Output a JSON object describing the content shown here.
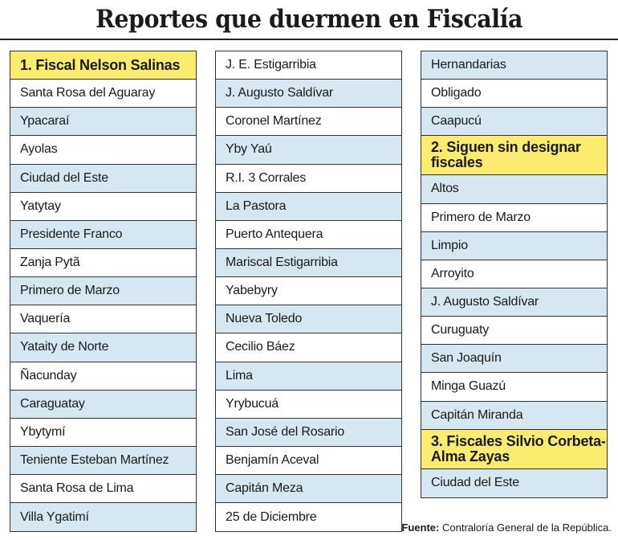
{
  "title": "Reportes que duermen en Fiscalía",
  "columns": [
    {
      "rows": [
        {
          "text": "1. Fiscal Nelson Salinas",
          "style": "yellow"
        },
        {
          "text": "Santa Rosa del Aguaray",
          "style": "white"
        },
        {
          "text": "Ypacaraí",
          "style": "blue"
        },
        {
          "text": "Ayolas",
          "style": "white"
        },
        {
          "text": "Ciudad del Este",
          "style": "blue"
        },
        {
          "text": "Yatytay",
          "style": "white"
        },
        {
          "text": "Presidente Franco",
          "style": "blue"
        },
        {
          "text": "Zanja Pytã",
          "style": "white"
        },
        {
          "text": "Primero de Marzo",
          "style": "blue"
        },
        {
          "text": "Vaquería",
          "style": "white"
        },
        {
          "text": "Yataity de Norte",
          "style": "blue"
        },
        {
          "text": "Ñacunday",
          "style": "white"
        },
        {
          "text": "Caraguatay",
          "style": "blue"
        },
        {
          "text": "Ybytymí",
          "style": "white"
        },
        {
          "text": "Teniente Esteban Martínez",
          "style": "blue"
        },
        {
          "text": "Santa Rosa de Lima",
          "style": "white"
        },
        {
          "text": "Villa Ygatimí",
          "style": "blue"
        }
      ]
    },
    {
      "rows": [
        {
          "text": "J. E. Estigarribia",
          "style": "white"
        },
        {
          "text": "J. Augusto Saldívar",
          "style": "blue"
        },
        {
          "text": "Coronel Martínez",
          "style": "white"
        },
        {
          "text": "Yby Yaú",
          "style": "blue"
        },
        {
          "text": "R.I. 3 Corrales",
          "style": "white"
        },
        {
          "text": "La Pastora",
          "style": "blue"
        },
        {
          "text": "Puerto Antequera",
          "style": "white"
        },
        {
          "text": "Mariscal Estigarribia",
          "style": "blue"
        },
        {
          "text": "Yabebyry",
          "style": "white"
        },
        {
          "text": "Nueva Toledo",
          "style": "blue"
        },
        {
          "text": "Cecilio Báez",
          "style": "white"
        },
        {
          "text": "Lima",
          "style": "blue"
        },
        {
          "text": "Yrybucuá",
          "style": "white"
        },
        {
          "text": "San José del Rosario",
          "style": "blue"
        },
        {
          "text": "Benjamín Aceval",
          "style": "white"
        },
        {
          "text": "Capitán Meza",
          "style": "blue"
        },
        {
          "text": "25 de Diciembre",
          "style": "white"
        }
      ]
    },
    {
      "rows": [
        {
          "text": "Hernandarias",
          "style": "blue"
        },
        {
          "text": "Obligado",
          "style": "white"
        },
        {
          "text": "Caapucú",
          "style": "blue"
        },
        {
          "text": "2. Siguen sin designar fiscales",
          "style": "yellow tall"
        },
        {
          "text": "Altos",
          "style": "blue"
        },
        {
          "text": "Primero de Marzo",
          "style": "white"
        },
        {
          "text": "Limpio",
          "style": "blue"
        },
        {
          "text": "Arroyito",
          "style": "white"
        },
        {
          "text": "J. Augusto Saldívar",
          "style": "blue"
        },
        {
          "text": "Curuguaty",
          "style": "white"
        },
        {
          "text": "San Joaquín",
          "style": "blue"
        },
        {
          "text": "Minga Guazú",
          "style": "white"
        },
        {
          "text": "Capitán Miranda",
          "style": "blue"
        },
        {
          "text": "3. Fiscales Silvio Corbeta- Alma Zayas",
          "style": "yellow tall"
        },
        {
          "text": "Ciudad del Este",
          "style": "blue"
        }
      ]
    }
  ],
  "source": {
    "label": "Fuente:",
    "text": "Contraloría General de la República."
  }
}
